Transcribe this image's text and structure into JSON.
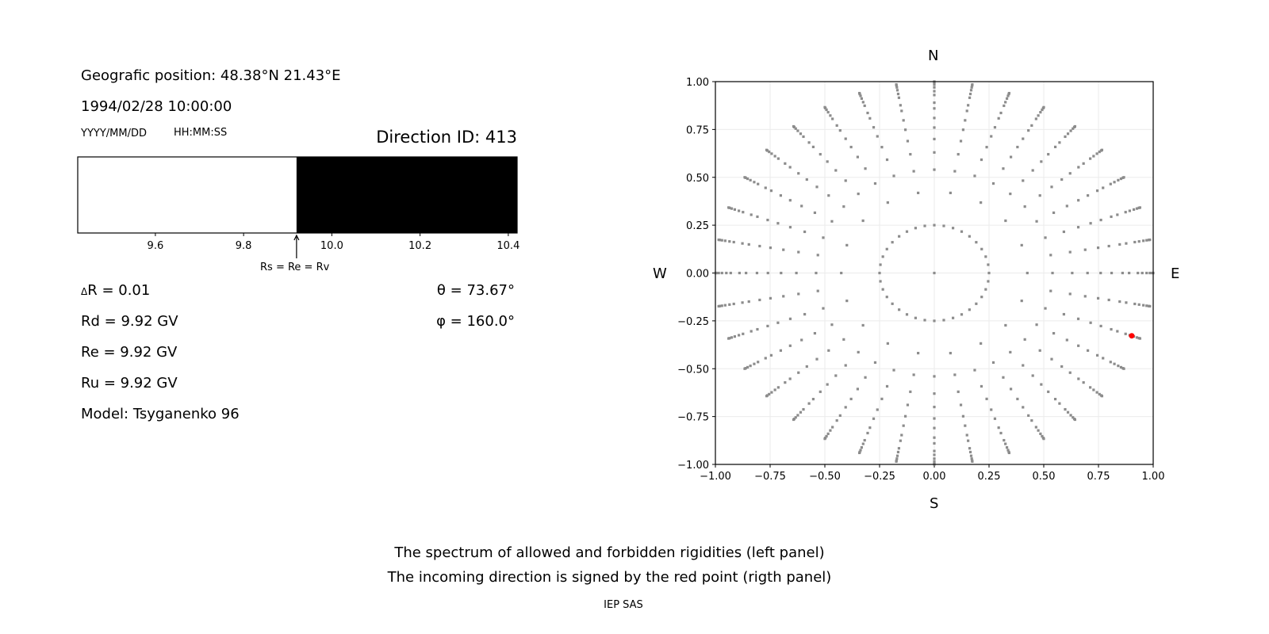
{
  "left_panel": {
    "position": "Geografic position: 48.38°N 21.43°E",
    "datetime": "1994/02/28 10:00:00",
    "date_format": "YYYY/MM/DD",
    "time_format": "HH:MM:SS",
    "direction_id": "Direction ID: 413",
    "annotation": "Rs = Re = Rv",
    "delta_r": "R = 0.01",
    "delta_symbol": "Δ",
    "rd": "Rd = 9.92 GV",
    "re": "Re = 9.92 GV",
    "ru": "Ru = 9.92 GV",
    "model": "Model: Tsyganenko 96",
    "theta": "θ = 73.67°",
    "phi": "φ = 160.0°"
  },
  "captions": {
    "line1": "The spectrum of allowed and forbidden rigidities (left panel)",
    "line2": "The incoming direction is signed by the red point (rigth panel)",
    "credit": "IEP SAS"
  },
  "chart_data": [
    {
      "type": "bar",
      "description_role": "rigidity spectrum",
      "xlim": [
        9.424,
        10.42
      ],
      "xticks": [
        "9.6",
        "9.8",
        "10.0",
        "10.2",
        "10.4"
      ],
      "xtick_values": [
        9.6,
        9.8,
        10.0,
        10.2,
        10.4
      ],
      "segments": [
        {
          "from": 9.424,
          "to": 9.92,
          "state": "allowed",
          "color": "#ffffff"
        },
        {
          "from": 9.92,
          "to": 10.42,
          "state": "forbidden",
          "color": "#000000"
        }
      ],
      "marker_value": 9.92
    },
    {
      "type": "scatter",
      "xlim": [
        -1,
        1
      ],
      "ylim": [
        -1,
        1
      ],
      "xticks": [
        "−1.00",
        "−0.75",
        "−0.50",
        "−0.25",
        "0.00",
        "0.25",
        "0.50",
        "0.75",
        "1.00"
      ],
      "yticks": [
        "−1.00",
        "−0.75",
        "−0.50",
        "−0.25",
        "0.00",
        "0.25",
        "0.50",
        "0.75",
        "1.00"
      ],
      "tick_values": [
        -1,
        -0.75,
        -0.5,
        -0.25,
        0,
        0.25,
        0.5,
        0.75,
        1
      ],
      "grid": true,
      "compass": {
        "n": "N",
        "s": "S",
        "e": "E",
        "w": "W"
      },
      "point_color": "#8c8c8c",
      "highlight_color": "#ff0000",
      "center_point": [
        0,
        0
      ],
      "rings": [
        {
          "r": 0.25,
          "step_deg": 10
        },
        {
          "r": 0.425,
          "step_deg": 20
        },
        {
          "r": 0.54,
          "step_deg": 10
        },
        {
          "r": 0.63,
          "step_deg": 10
        },
        {
          "r": 0.7,
          "step_deg": 10
        },
        {
          "r": 0.76,
          "step_deg": 10
        },
        {
          "r": 0.81,
          "step_deg": 10
        },
        {
          "r": 0.86,
          "step_deg": 10
        },
        {
          "r": 0.89,
          "step_deg": 10
        },
        {
          "r": 0.93,
          "step_deg": 10
        },
        {
          "r": 0.95,
          "step_deg": 10
        },
        {
          "r": 0.97,
          "step_deg": 10
        },
        {
          "r": 0.985,
          "step_deg": 10
        },
        {
          "r": 0.995,
          "step_deg": 10
        },
        {
          "r": 1.0,
          "step_deg": 10
        }
      ],
      "highlight": {
        "x": 0.902,
        "y": -0.328
      }
    }
  ]
}
